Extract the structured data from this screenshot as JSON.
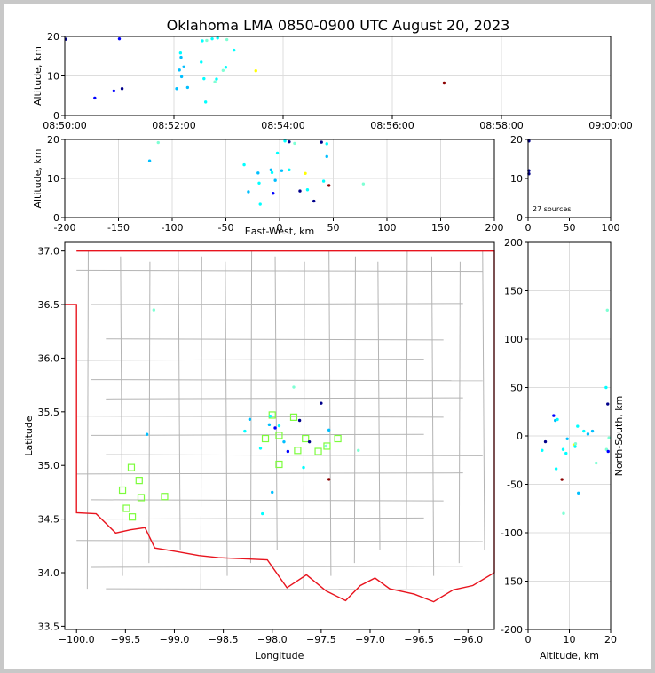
{
  "chart_data": {
    "type": "scatter",
    "title": "Oklahoma LMA 0850-0900 UTC August 20, 2023",
    "source_count_label": "27 sources",
    "colors": {
      "border": "#e8141e",
      "counties": "#b4b4b4",
      "grid": "#dddddd",
      "station": "#7cfc3c",
      "point_ramp": [
        "#00008b",
        "#0000ff",
        "#00bfff",
        "#00ffff",
        "#7fffd4",
        "#ffff00",
        "#8b0000"
      ]
    },
    "time_height": {
      "ylabel": "Altitude, km",
      "xlim": [
        0,
        10
      ],
      "ylim": [
        0,
        20
      ],
      "xticks": [
        0,
        2,
        4,
        6,
        8,
        10
      ],
      "xticklabels": [
        "08:50:00",
        "08:52:00",
        "08:54:00",
        "08:56:00",
        "08:58:00",
        "09:00:00"
      ],
      "yticks": [
        0,
        10,
        20
      ],
      "points": [
        {
          "t": 0.02,
          "alt": 19.3,
          "c": 0
        },
        {
          "t": 0.55,
          "alt": 4.4,
          "c": 1
        },
        {
          "t": 0.9,
          "alt": 6.2,
          "c": 1
        },
        {
          "t": 1.0,
          "alt": 19.4,
          "c": 1
        },
        {
          "t": 1.05,
          "alt": 6.8,
          "c": 0
        },
        {
          "t": 2.05,
          "alt": 6.8,
          "c": 2
        },
        {
          "t": 2.1,
          "alt": 11.5,
          "c": 2
        },
        {
          "t": 2.12,
          "alt": 15.8,
          "c": 3
        },
        {
          "t": 2.13,
          "alt": 14.7,
          "c": 2
        },
        {
          "t": 2.14,
          "alt": 9.8,
          "c": 2
        },
        {
          "t": 2.18,
          "alt": 12.3,
          "c": 2
        },
        {
          "t": 2.25,
          "alt": 7.1,
          "c": 2
        },
        {
          "t": 2.5,
          "alt": 13.5,
          "c": 3
        },
        {
          "t": 2.52,
          "alt": 18.9,
          "c": 3
        },
        {
          "t": 2.55,
          "alt": 9.3,
          "c": 3
        },
        {
          "t": 2.58,
          "alt": 3.4,
          "c": 3
        },
        {
          "t": 2.6,
          "alt": 19.0,
          "c": 4
        },
        {
          "t": 2.75,
          "alt": 8.5,
          "c": 4
        },
        {
          "t": 2.78,
          "alt": 9.2,
          "c": 3
        },
        {
          "t": 2.8,
          "alt": 19.6,
          "c": 3
        },
        {
          "t": 2.9,
          "alt": 11.4,
          "c": 4
        },
        {
          "t": 2.95,
          "alt": 12.2,
          "c": 3
        },
        {
          "t": 2.97,
          "alt": 19.2,
          "c": 4
        },
        {
          "t": 3.1,
          "alt": 16.5,
          "c": 3
        },
        {
          "t": 3.5,
          "alt": 11.3,
          "c": 5
        },
        {
          "t": 6.95,
          "alt": 8.2,
          "c": 6
        },
        {
          "t": 2.7,
          "alt": 19.4,
          "c": 3
        }
      ]
    },
    "ew_height": {
      "xlabel": "East-West, km",
      "ylabel": "Altitude, km",
      "xlim": [
        -200,
        200
      ],
      "ylim": [
        0,
        20
      ],
      "xticks": [
        -200,
        -150,
        -100,
        -50,
        0,
        50,
        100,
        150,
        200
      ],
      "yticks": [
        0,
        10,
        20
      ],
      "points": [
        {
          "x": -121,
          "alt": 14.5,
          "c": 2
        },
        {
          "x": -113,
          "alt": 19.2,
          "c": 4
        },
        {
          "x": -33,
          "alt": 13.5,
          "c": 3
        },
        {
          "x": -29,
          "alt": 6.6,
          "c": 2
        },
        {
          "x": -20,
          "alt": 11.4,
          "c": 2
        },
        {
          "x": -19,
          "alt": 8.8,
          "c": 3
        },
        {
          "x": -18,
          "alt": 3.4,
          "c": 3
        },
        {
          "x": -8,
          "alt": 12.2,
          "c": 2
        },
        {
          "x": -7,
          "alt": 11.5,
          "c": 3
        },
        {
          "x": -6,
          "alt": 6.2,
          "c": 1
        },
        {
          "x": -4,
          "alt": 9.5,
          "c": 2
        },
        {
          "x": -2,
          "alt": 16.5,
          "c": 3
        },
        {
          "x": 2,
          "alt": 12.0,
          "c": 2
        },
        {
          "x": 5,
          "alt": 19.6,
          "c": 3
        },
        {
          "x": 9,
          "alt": 12.2,
          "c": 3
        },
        {
          "x": 9,
          "alt": 19.4,
          "c": 0
        },
        {
          "x": 14,
          "alt": 19.0,
          "c": 4
        },
        {
          "x": 19,
          "alt": 6.8,
          "c": 0
        },
        {
          "x": 24,
          "alt": 11.3,
          "c": 5
        },
        {
          "x": 26,
          "alt": 7.1,
          "c": 3
        },
        {
          "x": 32,
          "alt": 4.2,
          "c": 0
        },
        {
          "x": 39,
          "alt": 19.3,
          "c": 0
        },
        {
          "x": 41,
          "alt": 9.3,
          "c": 3
        },
        {
          "x": 44,
          "alt": 18.9,
          "c": 3
        },
        {
          "x": 44,
          "alt": 15.6,
          "c": 2
        },
        {
          "x": 46,
          "alt": 8.2,
          "c": 6
        },
        {
          "x": 78,
          "alt": 8.6,
          "c": 4
        }
      ]
    },
    "histogram": {
      "xlim": [
        0,
        100
      ],
      "ylim": [
        0,
        20
      ],
      "xticks": [
        0,
        50,
        100
      ],
      "yticks": [
        0,
        10,
        20
      ],
      "points": [
        {
          "n": 1,
          "alt": 12.0,
          "c": 0
        },
        {
          "n": 1,
          "alt": 11.2,
          "c": 0
        },
        {
          "n": 1,
          "alt": 19.6,
          "c": 0
        }
      ]
    },
    "plan": {
      "xlabel": "Longitude",
      "ylabel": "Latitude",
      "xlim": [
        -100.12,
        -95.73
      ],
      "ylim": [
        33.47,
        37.08
      ],
      "xticks": [
        -100.0,
        -99.5,
        -99.0,
        -98.5,
        -98.0,
        -97.5,
        -97.0,
        -96.5,
        -96.0
      ],
      "xticklabels": [
        "−100.0",
        "−99.5",
        "−99.0",
        "−98.5",
        "−98.0",
        "−97.5",
        "−97.0",
        "−96.5",
        "−96.0"
      ],
      "yticks": [
        33.5,
        34.0,
        34.5,
        35.0,
        35.5,
        36.0,
        36.5,
        37.0
      ],
      "yticklabels": [
        "33.5",
        "34.0",
        "34.5",
        "35.0",
        "35.5",
        "36.0",
        "36.5",
        "37.0"
      ],
      "points": [
        {
          "lon": -99.21,
          "lat": 36.45,
          "c": 4
        },
        {
          "lon": -99.28,
          "lat": 35.29,
          "c": 2
        },
        {
          "lon": -98.23,
          "lat": 35.43,
          "c": 2
        },
        {
          "lon": -98.28,
          "lat": 35.32,
          "c": 3
        },
        {
          "lon": -98.12,
          "lat": 35.16,
          "c": 3
        },
        {
          "lon": -98.1,
          "lat": 34.55,
          "c": 3
        },
        {
          "lon": -98.03,
          "lat": 35.38,
          "c": 2
        },
        {
          "lon": -98.02,
          "lat": 35.46,
          "c": 3
        },
        {
          "lon": -98.0,
          "lat": 34.75,
          "c": 2
        },
        {
          "lon": -97.97,
          "lat": 35.35,
          "c": 1
        },
        {
          "lon": -97.93,
          "lat": 35.37,
          "c": 3
        },
        {
          "lon": -97.88,
          "lat": 35.22,
          "c": 2
        },
        {
          "lon": -97.84,
          "lat": 35.13,
          "c": 1
        },
        {
          "lon": -97.78,
          "lat": 35.73,
          "c": 4
        },
        {
          "lon": -97.72,
          "lat": 35.42,
          "c": 0
        },
        {
          "lon": -97.68,
          "lat": 34.98,
          "c": 3
        },
        {
          "lon": -97.62,
          "lat": 35.22,
          "c": 0
        },
        {
          "lon": -97.5,
          "lat": 35.58,
          "c": 0
        },
        {
          "lon": -97.45,
          "lat": 35.18,
          "c": 4
        },
        {
          "lon": -97.42,
          "lat": 35.33,
          "c": 2
        },
        {
          "lon": -97.42,
          "lat": 34.87,
          "c": 6
        },
        {
          "lon": -97.12,
          "lat": 35.14,
          "c": 4
        }
      ],
      "stations": [
        {
          "lon": -99.44,
          "lat": 34.98
        },
        {
          "lon": -99.36,
          "lat": 34.86
        },
        {
          "lon": -99.53,
          "lat": 34.77
        },
        {
          "lon": -99.34,
          "lat": 34.7
        },
        {
          "lon": -99.1,
          "lat": 34.71
        },
        {
          "lon": -99.49,
          "lat": 34.6
        },
        {
          "lon": -99.43,
          "lat": 34.52
        },
        {
          "lon": -98.0,
          "lat": 35.47
        },
        {
          "lon": -97.78,
          "lat": 35.45
        },
        {
          "lon": -98.07,
          "lat": 35.25
        },
        {
          "lon": -97.93,
          "lat": 35.28
        },
        {
          "lon": -97.66,
          "lat": 35.25
        },
        {
          "lon": -97.33,
          "lat": 35.25
        },
        {
          "lon": -97.74,
          "lat": 35.14
        },
        {
          "lon": -97.53,
          "lat": 35.13
        },
        {
          "lon": -97.44,
          "lat": 35.18
        },
        {
          "lon": -97.93,
          "lat": 35.01
        }
      ]
    },
    "ns_profile": {
      "xlabel": "Altitude, km",
      "ylabel": "North-South, km",
      "xlim": [
        0,
        20
      ],
      "ylim": [
        -200,
        200
      ],
      "xticks": [
        0,
        10,
        20
      ],
      "yticks": [
        -200,
        -150,
        -100,
        -50,
        0,
        50,
        100,
        150,
        200
      ],
      "points": [
        {
          "alt": 3.4,
          "y": -15,
          "c": 3
        },
        {
          "alt": 4.2,
          "y": -6,
          "c": 0
        },
        {
          "alt": 6.2,
          "y": 21,
          "c": 1
        },
        {
          "alt": 6.6,
          "y": 16,
          "c": 2
        },
        {
          "alt": 6.8,
          "y": -34,
          "c": 3
        },
        {
          "alt": 7.1,
          "y": 17,
          "c": 3
        },
        {
          "alt": 8.2,
          "y": -45,
          "c": 6
        },
        {
          "alt": 8.5,
          "y": -14,
          "c": 3
        },
        {
          "alt": 8.6,
          "y": -80,
          "c": 4
        },
        {
          "alt": 9.2,
          "y": -18,
          "c": 3
        },
        {
          "alt": 9.5,
          "y": -3,
          "c": 2
        },
        {
          "alt": 11.3,
          "y": -9,
          "c": 5
        },
        {
          "alt": 11.4,
          "y": -11,
          "c": 3
        },
        {
          "alt": 11.5,
          "y": -8,
          "c": 4
        },
        {
          "alt": 12.0,
          "y": 10,
          "c": 3
        },
        {
          "alt": 12.2,
          "y": -59,
          "c": 2
        },
        {
          "alt": 13.5,
          "y": 5,
          "c": 3
        },
        {
          "alt": 14.5,
          "y": 2,
          "c": 2
        },
        {
          "alt": 15.6,
          "y": 5,
          "c": 2
        },
        {
          "alt": 16.5,
          "y": -28,
          "c": 4
        },
        {
          "alt": 18.9,
          "y": 50,
          "c": 3
        },
        {
          "alt": 19.0,
          "y": -14,
          "c": 4
        },
        {
          "alt": 19.2,
          "y": 130,
          "c": 4
        },
        {
          "alt": 19.3,
          "y": 33,
          "c": 0
        },
        {
          "alt": 19.4,
          "y": -16,
          "c": 1
        },
        {
          "alt": 19.6,
          "y": -2,
          "c": 4
        }
      ]
    }
  }
}
